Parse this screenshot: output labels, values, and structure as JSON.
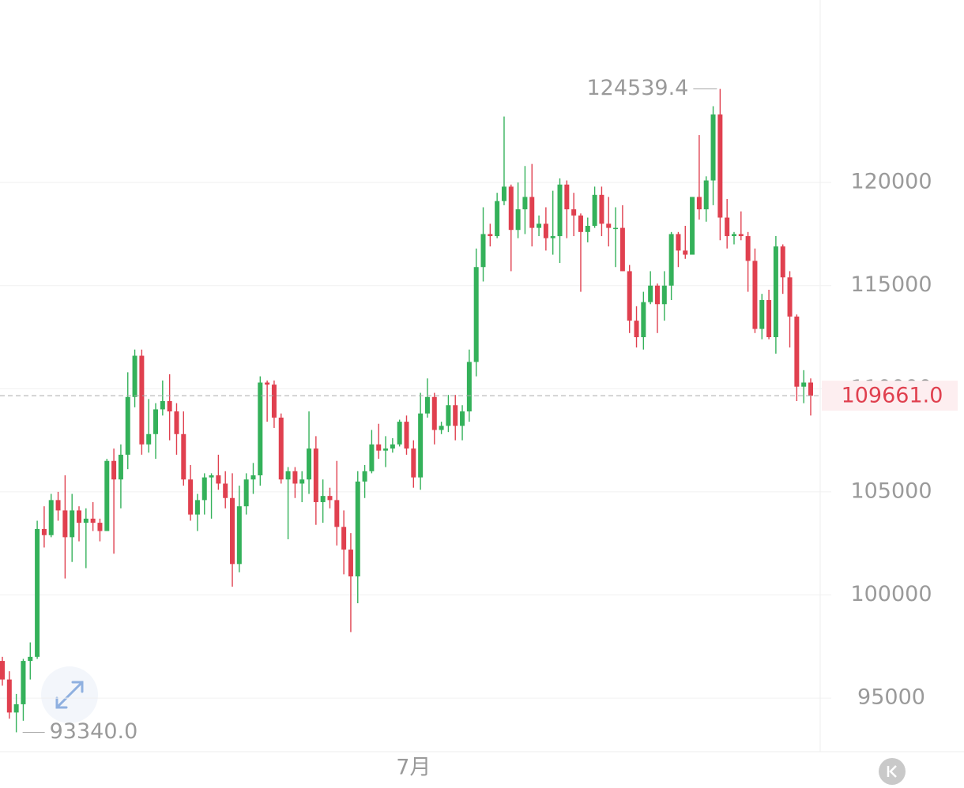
{
  "chart_data": {
    "type": "candlestick",
    "categories": [
      null,
      null,
      null,
      null,
      null,
      null,
      null,
      null,
      null,
      null,
      null,
      null,
      null,
      null,
      null,
      null,
      null,
      null,
      null,
      null,
      null,
      null,
      null,
      null,
      null,
      null,
      null,
      null,
      null,
      null,
      null,
      null,
      null,
      null,
      null,
      null,
      null,
      null,
      null,
      null,
      null,
      null,
      null,
      null,
      null,
      null,
      null,
      null,
      null,
      null,
      null,
      null,
      null,
      null,
      null,
      null,
      null,
      null,
      null,
      "7月",
      null,
      null,
      null,
      null,
      null,
      null,
      null,
      null,
      null,
      null,
      null,
      null,
      null,
      null,
      null,
      null,
      null,
      null,
      null,
      null,
      null,
      null,
      null,
      null,
      null,
      null,
      null,
      null,
      null,
      null,
      null,
      null,
      null,
      null,
      null,
      null,
      null,
      null,
      null,
      null,
      null,
      null,
      null,
      null,
      null,
      null,
      null,
      null,
      null,
      null,
      null,
      null,
      null,
      null,
      null,
      null,
      null
    ],
    "open": [
      96800,
      95900,
      94300,
      94700,
      96800,
      97000,
      103200,
      102900,
      104600,
      104100,
      102800,
      104100,
      103500,
      103700,
      103500,
      103100,
      106500,
      105600,
      106800,
      109600,
      111600,
      107300,
      107800,
      109000,
      109400,
      108900,
      107800,
      105600,
      103900,
      104600,
      105700,
      105800,
      105400,
      104700,
      101500,
      104300,
      105600,
      105800,
      110300,
      110200,
      108600,
      105600,
      106000,
      105400,
      105600,
      107100,
      104500,
      104800,
      104600,
      103300,
      102200,
      100900,
      105500,
      106000,
      107300,
      107000,
      107100,
      107300,
      108400,
      107100,
      105700,
      108800,
      109600,
      108000,
      108200,
      109200,
      108200,
      108900,
      111300,
      115900,
      117500,
      117400,
      119100,
      119800,
      117700,
      118700,
      119300,
      117800,
      118000,
      117300,
      117400,
      119900,
      118700,
      118400,
      117600,
      117900,
      119400,
      118000,
      117800,
      117800,
      115700,
      113300,
      112500,
      114200,
      115000,
      114100,
      115000,
      117500,
      116700,
      116500,
      119300,
      118700,
      120100,
      123300,
      118300,
      117400,
      117500,
      117400,
      116200,
      112900,
      114300,
      112500,
      116900,
      115400,
      113500,
      110100,
      110300
    ],
    "high": [
      97000,
      96300,
      95200,
      96900,
      97700,
      103600,
      104300,
      104900,
      105000,
      105800,
      104900,
      104300,
      104200,
      104500,
      103700,
      106600,
      107100,
      107300,
      110800,
      111900,
      111900,
      109500,
      109300,
      110400,
      110700,
      109300,
      108900,
      106300,
      104900,
      105900,
      105900,
      106800,
      106000,
      105900,
      105300,
      105900,
      106400,
      110600,
      110400,
      110400,
      108800,
      106200,
      106200,
      106000,
      108900,
      107700,
      105600,
      105200,
      106500,
      104100,
      103000,
      106000,
      106300,
      108000,
      108300,
      107700,
      107600,
      108500,
      108700,
      107500,
      109800,
      110500,
      109800,
      108400,
      109700,
      109700,
      109200,
      111900,
      116800,
      118800,
      118000,
      119500,
      123200,
      119900,
      120000,
      120800,
      120900,
      118400,
      118800,
      119600,
      120200,
      120100,
      119500,
      118500,
      118300,
      119800,
      119800,
      119300,
      118800,
      118900,
      116000,
      114000,
      114700,
      115700,
      115100,
      115700,
      117600,
      117600,
      117900,
      119300,
      122300,
      120300,
      123700,
      124539.4,
      119200,
      117600,
      118600,
      117600,
      116800,
      114600,
      114800,
      117400,
      117000,
      115700,
      113600,
      110900,
      110500
    ],
    "low": [
      95600,
      94000,
      93340,
      93900,
      95900,
      96900,
      102300,
      102800,
      103600,
      100800,
      101600,
      102600,
      101300,
      103100,
      102600,
      103100,
      102000,
      104200,
      106100,
      109100,
      106800,
      106900,
      106600,
      108700,
      107500,
      106800,
      105300,
      103600,
      103100,
      103900,
      103700,
      105100,
      104200,
      100400,
      101100,
      103900,
      104900,
      105300,
      108400,
      108100,
      105400,
      102700,
      104700,
      104500,
      104900,
      103400,
      103500,
      104200,
      102400,
      101000,
      98200,
      99600,
      104700,
      105900,
      106600,
      106200,
      106900,
      107200,
      106800,
      105200,
      105100,
      108600,
      107300,
      107800,
      107900,
      107500,
      107500,
      108400,
      110600,
      115200,
      116900,
      117300,
      118900,
      115700,
      117300,
      117500,
      116900,
      117400,
      116700,
      116500,
      116100,
      117300,
      117400,
      114700,
      117100,
      117800,
      117400,
      116900,
      115900,
      115700,
      112700,
      112000,
      111900,
      114100,
      112700,
      113300,
      114300,
      115900,
      116300,
      116600,
      118200,
      118100,
      118900,
      117200,
      116800,
      117000,
      117200,
      114700,
      112700,
      112400,
      112400,
      111700,
      114600,
      112000,
      109400,
      109300,
      108700
    ],
    "close": [
      95900,
      94300,
      94700,
      96800,
      97000,
      103200,
      102900,
      104600,
      104100,
      102800,
      104100,
      103500,
      103700,
      103500,
      103100,
      106500,
      105600,
      106800,
      109600,
      111600,
      107300,
      107800,
      109000,
      109400,
      108900,
      107800,
      105600,
      103900,
      104600,
      105700,
      105800,
      105400,
      104700,
      101500,
      104300,
      105600,
      105800,
      110300,
      110200,
      108600,
      105600,
      106000,
      105400,
      105600,
      107100,
      104500,
      104800,
      104600,
      103300,
      102200,
      100900,
      105500,
      106000,
      107300,
      107000,
      107100,
      107300,
      108400,
      107100,
      105700,
      108800,
      109600,
      108000,
      108200,
      109200,
      108200,
      108900,
      111300,
      115900,
      117500,
      117400,
      119100,
      119800,
      117700,
      118700,
      119300,
      117800,
      118000,
      117300,
      117400,
      119900,
      118700,
      118400,
      117600,
      117900,
      119400,
      118000,
      117800,
      117800,
      115700,
      113300,
      112500,
      114200,
      115000,
      114100,
      115000,
      117500,
      116700,
      116500,
      119300,
      118700,
      120100,
      123300,
      118300,
      117400,
      117500,
      117400,
      116200,
      112900,
      114300,
      112500,
      116900,
      115400,
      113500,
      110100,
      110300,
      109661
    ],
    "up_color": "#34b15a",
    "down_color": "#e0404f",
    "ylim": [
      92400,
      128850
    ],
    "yticks": [
      95000,
      100000,
      105000,
      110000,
      115000,
      120000
    ],
    "grid": true,
    "max_label": {
      "value": 124539.4,
      "label": "124539.4"
    },
    "min_label": {
      "value": 93340,
      "label": "93340.0"
    },
    "last_price": {
      "value": 109661,
      "label": "109661.0",
      "color": "#e0404f"
    }
  }
}
